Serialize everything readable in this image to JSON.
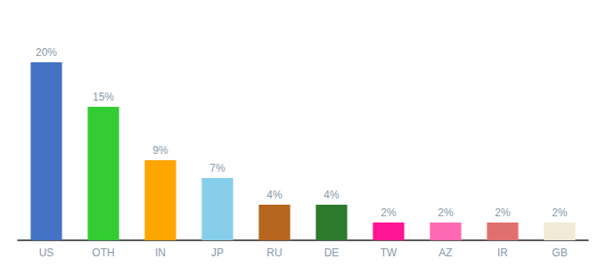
{
  "chart_data": {
    "type": "bar",
    "categories": [
      "US",
      "OTH",
      "IN",
      "JP",
      "RU",
      "DE",
      "TW",
      "AZ",
      "IR",
      "GB"
    ],
    "values": [
      20,
      15,
      9,
      7,
      4,
      4,
      2,
      2,
      2,
      2
    ],
    "value_labels": [
      "20%",
      "15%",
      "9%",
      "7%",
      "4%",
      "4%",
      "2%",
      "2%",
      "2%",
      "2%"
    ],
    "colors": [
      "#4472c4",
      "#33cc33",
      "#ffa500",
      "#87ceeb",
      "#b5651d",
      "#2d7a2d",
      "#ff1493",
      "#ff69b4",
      "#e07070",
      "#f0ead6"
    ],
    "ylim": [
      0,
      24
    ],
    "grid": false,
    "data_labels": true,
    "tick_labels": "x"
  }
}
